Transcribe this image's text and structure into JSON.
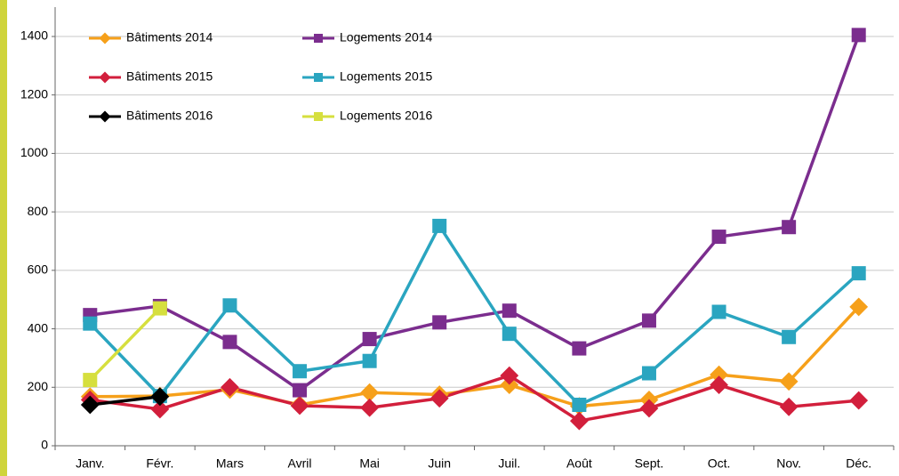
{
  "chart_data": {
    "type": "line",
    "categories": [
      "Janv.",
      "Févr.",
      "Mars",
      "Avril",
      "Mai",
      "Juin",
      "Juil.",
      "Août",
      "Sept.",
      "Oct.",
      "Nov.",
      "Déc."
    ],
    "series": [
      {
        "name": "Bâtiments 2014",
        "color": "#f6a01a",
        "marker": "diamond",
        "values": [
          168,
          170,
          192,
          140,
          182,
          175,
          208,
          135,
          157,
          243,
          220,
          475
        ]
      },
      {
        "name": "Logements 2014",
        "color": "#7b2d8e",
        "marker": "square",
        "values": [
          447,
          478,
          355,
          190,
          365,
          422,
          462,
          333,
          428,
          715,
          748,
          1405
        ]
      },
      {
        "name": "Bâtiments 2015",
        "color": "#d21f3c",
        "marker": "diamond",
        "values": [
          157,
          125,
          200,
          137,
          130,
          162,
          240,
          85,
          128,
          208,
          133,
          155
        ]
      },
      {
        "name": "Logements 2015",
        "color": "#2aa5c0",
        "marker": "square",
        "values": [
          418,
          170,
          480,
          255,
          290,
          752,
          383,
          140,
          248,
          458,
          372,
          590
        ]
      },
      {
        "name": "Bâtiments 2016",
        "color": "#000000",
        "marker": "diamond",
        "values": [
          140,
          168,
          null,
          null,
          null,
          null,
          null,
          null,
          null,
          null,
          null,
          null
        ]
      },
      {
        "name": "Logements 2016",
        "color": "#d6df3e",
        "marker": "square",
        "values": [
          225,
          470,
          null,
          null,
          null,
          null,
          null,
          null,
          null,
          null,
          null,
          null
        ]
      }
    ],
    "ylim": [
      0,
      1400
    ],
    "yticks": [
      0,
      200,
      400,
      600,
      800,
      1000,
      1200,
      1400
    ],
    "grid": true
  }
}
